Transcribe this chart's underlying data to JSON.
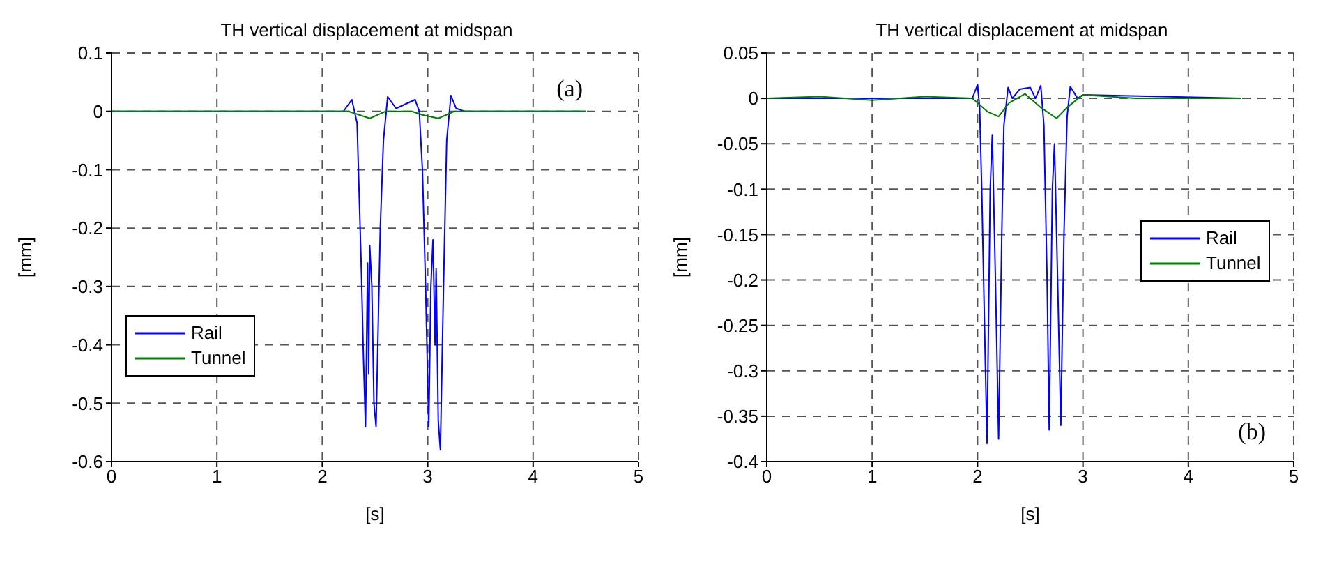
{
  "chart_data": [
    {
      "type": "line",
      "title": "TH vertical displacement at midspan",
      "xlabel": "[s]",
      "ylabel": "[mm]",
      "annotations": [
        "(a)"
      ],
      "xlim": [
        0,
        5
      ],
      "xticks": [
        0,
        1,
        2,
        3,
        4,
        5
      ],
      "ylim": [
        -0.6,
        0.1
      ],
      "yticks": [
        -0.6,
        -0.5,
        -0.4,
        -0.3,
        -0.2,
        -0.1,
        0,
        0.1
      ],
      "grid": true,
      "legend": "left",
      "line_style": "solid",
      "marker": "none",
      "series": [
        {
          "name": "Rail",
          "color": "#0000ff",
          "x": [
            0,
            2.2,
            2.28,
            2.33,
            2.37,
            2.39,
            2.41,
            2.43,
            2.44,
            2.45,
            2.47,
            2.49,
            2.51,
            2.55,
            2.58,
            2.62,
            2.7,
            2.88,
            2.92,
            2.95,
            2.98,
            3.01,
            3.03,
            3.05,
            3.07,
            3.08,
            3.1,
            3.12,
            3.15,
            3.18,
            3.22,
            3.27,
            3.35,
            4.5
          ],
          "values": [
            0,
            0,
            0.02,
            -0.02,
            -0.27,
            -0.42,
            -0.54,
            -0.26,
            -0.45,
            -0.23,
            -0.3,
            -0.5,
            -0.54,
            -0.2,
            -0.05,
            0.025,
            0.005,
            0.02,
            0,
            -0.1,
            -0.3,
            -0.54,
            -0.3,
            -0.22,
            -0.4,
            -0.27,
            -0.53,
            -0.58,
            -0.3,
            -0.05,
            0.027,
            0.005,
            0,
            0
          ]
        },
        {
          "name": "Tunnel",
          "color": "#008000",
          "x": [
            0,
            2.25,
            2.35,
            2.45,
            2.55,
            2.6,
            2.85,
            2.95,
            3.1,
            3.25,
            4.5
          ],
          "values": [
            0,
            0,
            -0.006,
            -0.012,
            -0.004,
            0,
            0,
            -0.006,
            -0.012,
            0,
            0
          ]
        }
      ]
    },
    {
      "type": "line",
      "title": "TH vertical displacement at midspan",
      "xlabel": "[s]",
      "ylabel": "[mm]",
      "annotations": [
        "(b)"
      ],
      "xlim": [
        0,
        5
      ],
      "xticks": [
        0,
        1,
        2,
        3,
        4,
        5
      ],
      "ylim": [
        -0.4,
        0.05
      ],
      "yticks": [
        -0.4,
        -0.35,
        -0.3,
        -0.25,
        -0.2,
        -0.15,
        -0.1,
        -0.05,
        0,
        0.05
      ],
      "grid": true,
      "legend": "right",
      "line_style": "solid",
      "marker": "none",
      "series": [
        {
          "name": "Rail",
          "color": "#0000ff",
          "x": [
            0,
            1.95,
            2.0,
            2.02,
            2.04,
            2.07,
            2.09,
            2.12,
            2.14,
            2.17,
            2.2,
            2.23,
            2.25,
            2.29,
            2.33,
            2.4,
            2.5,
            2.55,
            2.6,
            2.63,
            2.66,
            2.68,
            2.71,
            2.73,
            2.76,
            2.79,
            2.82,
            2.85,
            2.88,
            2.95,
            3.0,
            4.5
          ],
          "values": [
            0,
            0,
            0.015,
            -0.01,
            -0.1,
            -0.27,
            -0.38,
            -0.1,
            -0.04,
            -0.2,
            -0.375,
            -0.15,
            -0.03,
            0.012,
            0,
            0.01,
            0.012,
            0,
            0.014,
            -0.03,
            -0.2,
            -0.365,
            -0.1,
            -0.05,
            -0.2,
            -0.36,
            -0.15,
            -0.02,
            0.013,
            0,
            0.004,
            0
          ]
        },
        {
          "name": "Tunnel",
          "color": "#008000",
          "x": [
            0,
            0.5,
            1,
            1.5,
            1.95,
            2.05,
            2.1,
            2.2,
            2.3,
            2.45,
            2.6,
            2.75,
            2.85,
            3.0,
            3.5,
            4.5
          ],
          "values": [
            0,
            0.002,
            -0.002,
            0.002,
            0,
            -0.01,
            -0.015,
            -0.02,
            -0.005,
            0.005,
            -0.01,
            -0.022,
            -0.01,
            0.004,
            0,
            0
          ]
        }
      ]
    }
  ]
}
